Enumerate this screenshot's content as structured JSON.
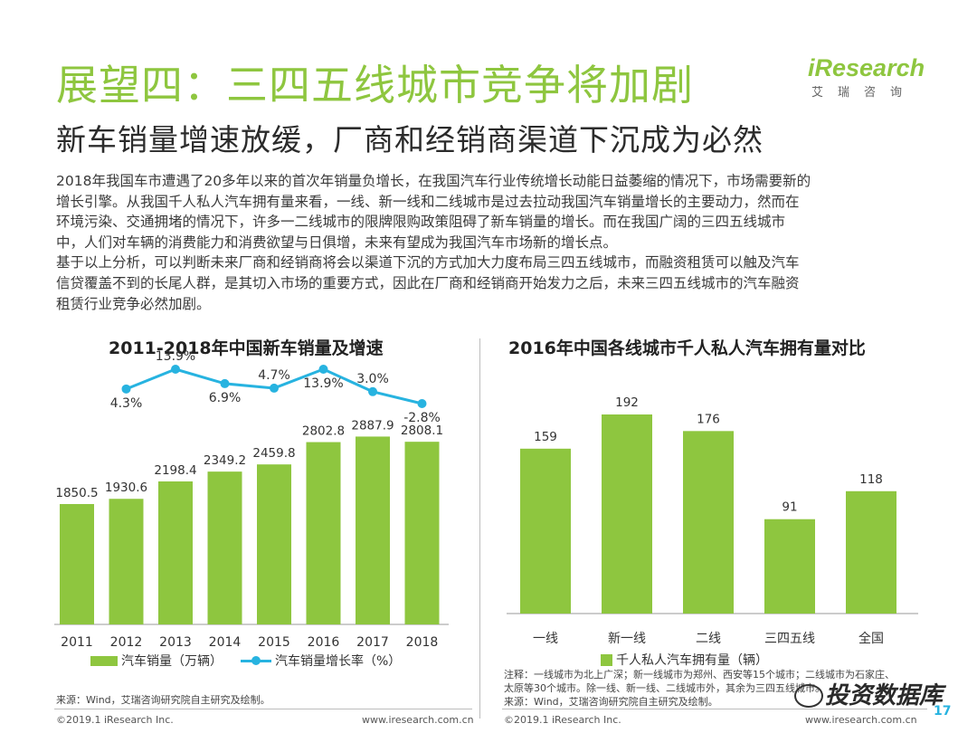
{
  "header": {
    "title": "展望四：三四五线城市竞争将加剧",
    "subtitle": "新车销量增速放缓，厂商和经销商渠道下沉成为必然",
    "logo_main": "iResearch",
    "logo_sub": "艾瑞咨询"
  },
  "body": {
    "lines": [
      "2018年我国车市遭遇了20多年以来的首次年销量负增长，在我国汽车行业传统增长动能日益萎缩的情况下，市场需要新的",
      "增长引擎。从我国千人私人汽车拥有量来看，一线、新一线和二线城市是过去拉动我国汽车销量增长的主要动力，然而在",
      "环境污染、交通拥堵的情况下，许多一二线城市的限牌限购政策阻碍了新车销量的增长。而在我国广阔的三四五线城市",
      "中，人们对车辆的消费能力和消费欲望与日俱增，未来有望成为我国汽车市场新的增长点。",
      "基于以上分析，可以判断未来厂商和经销商将会以渠道下沉的方式加大力度布局三四五线城市，而融资租赁可以触及汽车",
      "信贷覆盖不到的长尾人群，是其切入市场的重要方式，因此在厂商和经销商开始发力之后，未来三四五线城市的汽车融资",
      "租赁行业竞争必然加剧。"
    ]
  },
  "chart_data": [
    {
      "type": "bar",
      "title": "2011-2018年中国新车销量及增速",
      "categories": [
        "2011",
        "2012",
        "2013",
        "2014",
        "2015",
        "2016",
        "2017",
        "2018"
      ],
      "series": [
        {
          "name": "汽车销量（万辆）",
          "type": "bar",
          "values": [
            1850.5,
            1930.6,
            2198.4,
            2349.2,
            2459.8,
            2802.8,
            2887.9,
            2808.1
          ],
          "labels": [
            "1850.5",
            "1930.6",
            "2198.4",
            "2349.2",
            "2459.8",
            "2802.8",
            "2887.9",
            "2808.1"
          ]
        },
        {
          "name": "汽车销量增长率（%）",
          "type": "line",
          "values": [
            null,
            4.3,
            13.9,
            6.9,
            4.7,
            13.9,
            3.0,
            -2.8
          ],
          "labels": [
            "",
            "4.3%",
            "13.9%",
            "6.9%",
            "4.7%",
            "13.9%",
            "3.0%",
            "-2.8%"
          ]
        }
      ],
      "legend_position": "bottom",
      "colors": {
        "bar": "#8ec63f",
        "line": "#27b3e0"
      }
    },
    {
      "type": "bar",
      "title": "2016年中国各线城市千人私人汽车拥有量对比",
      "categories": [
        "一线",
        "新一线",
        "二线",
        "三四五线",
        "全国"
      ],
      "series": [
        {
          "name": "千人私人汽车拥有量（辆）",
          "values": [
            159,
            192,
            176,
            91,
            118
          ],
          "labels": [
            "159",
            "192",
            "176",
            "91",
            "118"
          ]
        }
      ],
      "legend_position": "bottom",
      "colors": {
        "bar": "#8ec63f"
      }
    }
  ],
  "notes": {
    "left_source": "来源：Wind，艾瑞咨询研究院自主研究及绘制。",
    "right_note_1": "注释：一线城市为北上广深；新一线城市为郑州、西安等15个城市；二线城市为石家庄、",
    "right_note_2": "太原等30个城市。除一线、新一线、二线城市外，其余为三四五线城市。",
    "right_source": "来源：Wind，艾瑞咨询研究院自主研究及绘制。"
  },
  "footer": {
    "left_copyright": "©2019.1 iResearch Inc.",
    "left_url": "www.iresearch.com.cn",
    "right_copyright": "©2019.1 iResearch Inc.",
    "right_url": "www.iresearch.com.cn",
    "watermark": "投资数据库",
    "page_badge": "17"
  }
}
